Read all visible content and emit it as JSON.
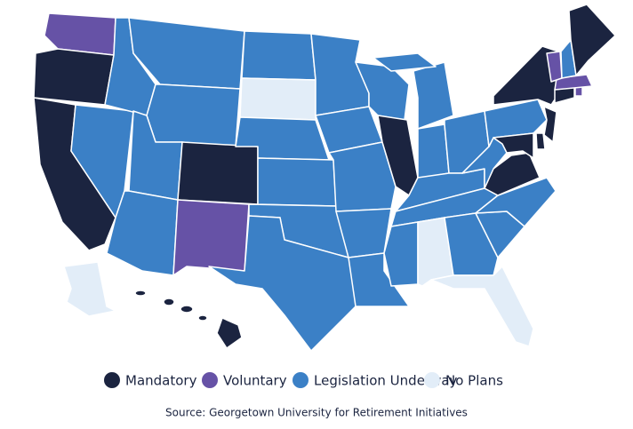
{
  "legend": [
    {
      "label": "Mandatory",
      "color": "#1b2440"
    },
    {
      "label": "Voluntary",
      "color": "#6652a6"
    },
    {
      "label": "Legislation Underway",
      "color": "#3b80c6"
    },
    {
      "label": "No Plans",
      "color": "#e2edf8"
    }
  ],
  "source": "Source: Georgetown University for Retirement Initiatives"
}
